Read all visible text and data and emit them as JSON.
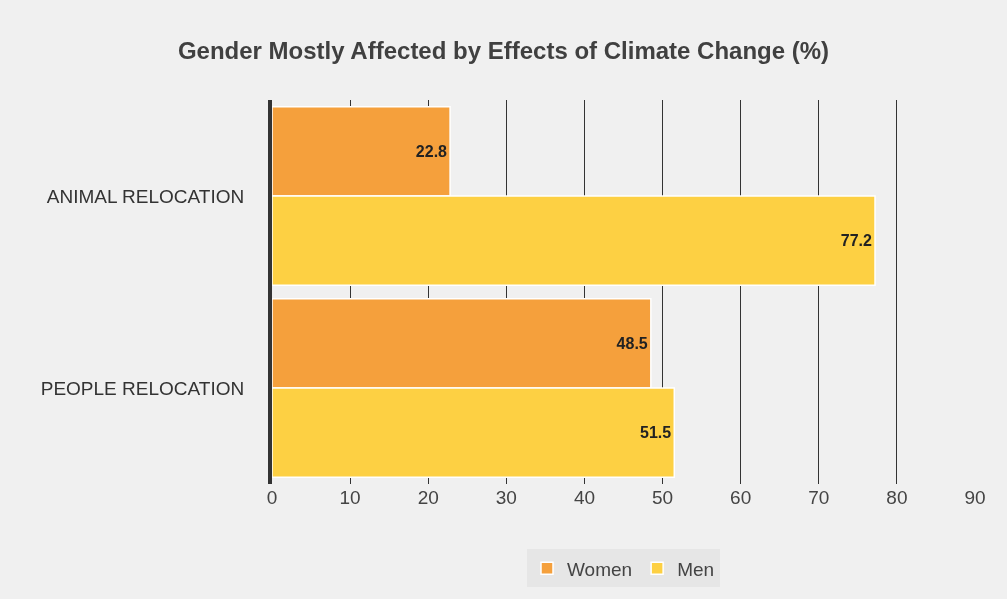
{
  "chart_data": {
    "type": "bar",
    "orientation": "horizontal",
    "title": "Gender Mostly Affected by Effects of Climate Change (%)",
    "categories": [
      "ANIMAL RELOCATION",
      "PEOPLE RELOCATION"
    ],
    "series": [
      {
        "name": "Women",
        "color": "#f5a03c",
        "values": [
          22.8,
          48.5
        ]
      },
      {
        "name": "Men",
        "color": "#fdd043",
        "values": [
          77.2,
          51.5
        ]
      }
    ],
    "xlim": [
      0,
      90
    ],
    "xticks": [
      0,
      10,
      20,
      30,
      40,
      50,
      60,
      70,
      80,
      90
    ],
    "grid": "x",
    "legend": "bottom",
    "data_labels": true
  }
}
